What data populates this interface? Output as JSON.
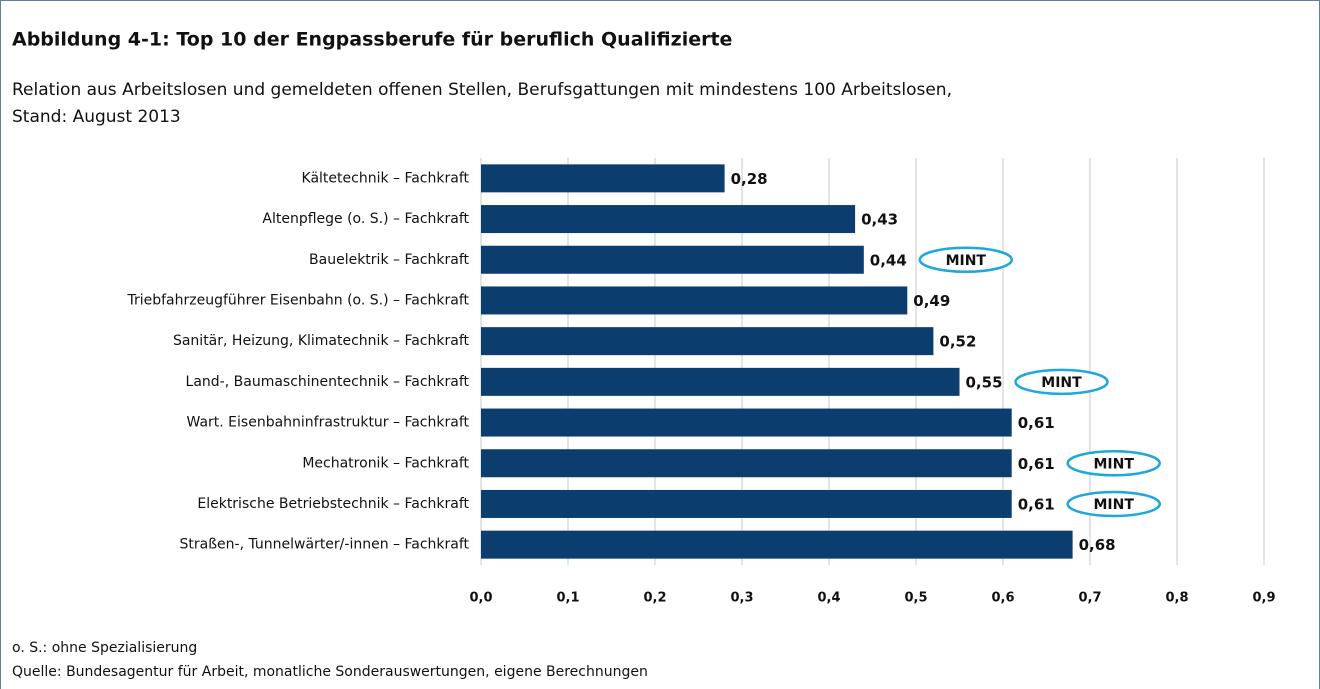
{
  "chart_data": {
    "type": "barh",
    "title": "Abbildung 4-1: Top 10 der Engpassberufe für beruflich Qualifizierte",
    "subtitle": [
      "Relation aus Arbeitslosen und gemeldeten offenen Stellen, Berufsgattungen mit mindestens 100 Arbeitslosen,",
      "Stand: August 2013"
    ],
    "categories": [
      "Kältetechnik – Fachkraft",
      "Altenpflege (o. S.) – Fachkraft",
      "Bauelektrik – Fachkraft",
      "Triebfahrzeugführer Eisenbahn (o. S.) – Fachkraft",
      "Sanitär, Heizung, Klimatechnik – Fachkraft",
      "Land-, Baumaschinentechnik – Fachkraft",
      "Wart. Eisenbahninfrastruktur – Fachkraft",
      "Mechatronik – Fachkraft",
      "Elektrische Betriebstechnik – Fachkraft",
      "Straßen-, Tunnelwärter/-innen – Fachkraft"
    ],
    "values": [
      0.28,
      0.43,
      0.44,
      0.49,
      0.52,
      0.55,
      0.61,
      0.61,
      0.61,
      0.68
    ],
    "value_labels": [
      "0,28",
      "0,43",
      "0,44",
      "0,49",
      "0,52",
      "0,55",
      "0,61",
      "0,61",
      "0,61",
      "0,68"
    ],
    "badges": [
      null,
      null,
      "MINT",
      null,
      null,
      "MINT",
      null,
      "MINT",
      "MINT",
      null
    ],
    "color": "#0b3d6e",
    "badge_color": "#1ea7dc",
    "xlim": [
      0,
      0.9
    ],
    "xticks": [
      {
        "value": 0,
        "label": "0,0"
      },
      {
        "value": 0.1,
        "label": "0,1"
      },
      {
        "value": 0.2,
        "label": "0,2"
      },
      {
        "value": 0.3,
        "label": "0,3"
      },
      {
        "value": 0.4,
        "label": "0,4"
      },
      {
        "value": 0.5,
        "label": "0,5"
      },
      {
        "value": 0.6,
        "label": "0,6"
      },
      {
        "value": 0.7,
        "label": "0,7"
      },
      {
        "value": 0.8,
        "label": "0,8"
      },
      {
        "value": 0.9,
        "label": "0,9"
      }
    ],
    "grid": true,
    "notes": [
      "o. S.: ohne Spezialisierung",
      "Quelle: Bundesagentur für Arbeit, monatliche Sonderauswertungen, eigene Berechnungen"
    ]
  }
}
